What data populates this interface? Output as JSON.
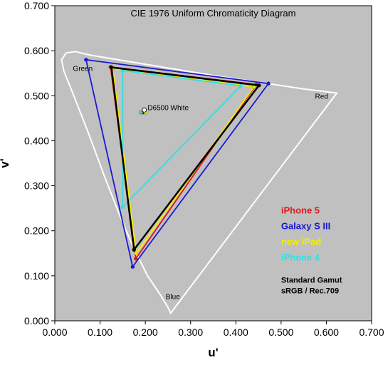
{
  "chart_data": {
    "type": "scatter",
    "title": "CIE 1976 Uniform Chromaticity Diagram",
    "xlabel": "u'",
    "ylabel": "v'",
    "xlim": [
      0.0,
      0.7
    ],
    "ylim": [
      0.0,
      0.7
    ],
    "xticks": [
      "0.000",
      "0.100",
      "0.200",
      "0.300",
      "0.400",
      "0.500",
      "0.600",
      "0.700"
    ],
    "yticks": [
      "0.000",
      "0.100",
      "0.200",
      "0.300",
      "0.400",
      "0.500",
      "0.600",
      "0.700"
    ],
    "grid": false,
    "background": "#c0c0c0",
    "vertex_labels": [
      {
        "text": "Green",
        "u": 0.04,
        "v": 0.555
      },
      {
        "text": "Red",
        "u": 0.575,
        "v": 0.493
      },
      {
        "text": "Blue",
        "u": 0.245,
        "v": 0.048
      },
      {
        "text": "D6500 White",
        "u": 0.205,
        "v": 0.468
      }
    ],
    "spectral_locus": [
      [
        0.256,
        0.017
      ],
      [
        0.25,
        0.03
      ],
      [
        0.235,
        0.055
      ],
      [
        0.205,
        0.1
      ],
      [
        0.175,
        0.16
      ],
      [
        0.145,
        0.23
      ],
      [
        0.11,
        0.32
      ],
      [
        0.075,
        0.415
      ],
      [
        0.04,
        0.505
      ],
      [
        0.02,
        0.555
      ],
      [
        0.015,
        0.58
      ],
      [
        0.025,
        0.595
      ],
      [
        0.045,
        0.598
      ],
      [
        0.08,
        0.59
      ],
      [
        0.2,
        0.57
      ],
      [
        0.35,
        0.545
      ],
      [
        0.45,
        0.53
      ],
      [
        0.55,
        0.515
      ],
      [
        0.623,
        0.506
      ],
      [
        0.256,
        0.017
      ]
    ],
    "white_point": {
      "u": 0.1978,
      "v": 0.4683
    },
    "series": [
      {
        "name": "Galaxy S III",
        "color": "#1a1ad0",
        "points": [
          [
            0.069,
            0.58
          ],
          [
            0.472,
            0.527
          ],
          [
            0.172,
            0.12
          ]
        ],
        "white": [
          0.196,
          0.463
        ]
      },
      {
        "name": "iPhone 5",
        "color": "#e01818",
        "points": [
          [
            0.123,
            0.564
          ],
          [
            0.445,
            0.525
          ],
          [
            0.179,
            0.138
          ]
        ],
        "white": [
          0.192,
          0.463
        ]
      },
      {
        "name": "new iPad",
        "color": "#f0f000",
        "points": [
          [
            0.128,
            0.56
          ],
          [
            0.44,
            0.52
          ],
          [
            0.18,
            0.15
          ]
        ],
        "white": [
          0.2,
          0.463
        ]
      },
      {
        "name": "iPhone 4",
        "color": "#30e0e0",
        "points": [
          [
            0.15,
            0.556
          ],
          [
            0.411,
            0.522
          ],
          [
            0.15,
            0.253
          ]
        ],
        "white": [
          0.19,
          0.463
        ]
      },
      {
        "name": "Standard Gamut",
        "color": "#000000",
        "points": [
          [
            0.125,
            0.563
          ],
          [
            0.451,
            0.523
          ],
          [
            0.175,
            0.158
          ]
        ],
        "white": [
          0.1978,
          0.4683
        ]
      }
    ],
    "legend": [
      {
        "text": "iPhone 5",
        "color": "#e01818"
      },
      {
        "text": "Galaxy S III",
        "color": "#1a1ad0"
      },
      {
        "text": "new iPad",
        "color": "#f0f000"
      },
      {
        "text": "iPhone 4",
        "color": "#30e0e0"
      }
    ],
    "legend_std": [
      "Standard Gamut",
      "sRGB / Rec.709"
    ],
    "legend_placement": "bottom-right"
  }
}
